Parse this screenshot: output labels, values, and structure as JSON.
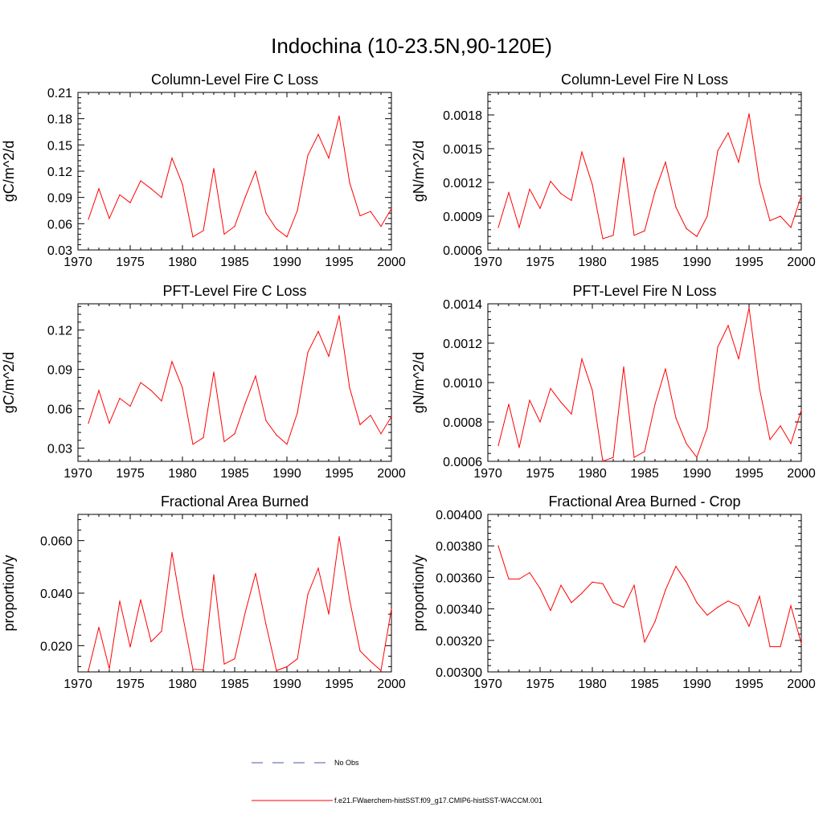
{
  "title": "Indochina (10-23.5N,90-120E)",
  "colors": {
    "model": "#ff0000",
    "obs": "#4a5aa8",
    "axis": "#000000"
  },
  "legend": {
    "obs_label": "No Obs",
    "model_label": "f.e21.FWaerchem-histSST.f09_g17.CMIP6-histSST-WACCM.001"
  },
  "chart_data": [
    {
      "type": "line",
      "title": "Column-Level Fire C Loss",
      "ylabel": "gC/m^2/d",
      "xlim": [
        1970,
        2000
      ],
      "ylim": [
        0.03,
        0.21
      ],
      "xticks": [
        "1970",
        "1975",
        "1980",
        "1985",
        "1990",
        "1995",
        "2000"
      ],
      "yticks": [
        "0.03",
        "0.06",
        "0.09",
        "0.12",
        "0.15",
        "0.18",
        "0.21"
      ],
      "x": [
        1971,
        1972,
        1973,
        1974,
        1975,
        1976,
        1977,
        1978,
        1979,
        1980,
        1981,
        1982,
        1983,
        1984,
        1985,
        1986,
        1987,
        1988,
        1989,
        1990,
        1991,
        1992,
        1993,
        1994,
        1995,
        1996,
        1997,
        1998,
        1999,
        2000
      ],
      "series": [
        {
          "values": [
            0.065,
            0.1,
            0.066,
            0.093,
            0.084,
            0.109,
            0.1,
            0.09,
            0.135,
            0.105,
            0.045,
            0.052,
            0.123,
            0.048,
            0.057,
            0.09,
            0.12,
            0.072,
            0.054,
            0.045,
            0.075,
            0.138,
            0.162,
            0.135,
            0.183,
            0.107,
            0.069,
            0.074,
            0.057,
            0.077
          ]
        }
      ]
    },
    {
      "type": "line",
      "title": "Column-Level Fire N Loss",
      "ylabel": "gN/m^2/d",
      "xlim": [
        1970,
        2000
      ],
      "ylim": [
        0.0006,
        0.002
      ],
      "xticks": [
        "1970",
        "1975",
        "1980",
        "1985",
        "1990",
        "1995",
        "2000"
      ],
      "yticks": [
        "0.0006",
        "0.0009",
        "0.0012",
        "0.0015",
        "0.0018"
      ],
      "ytick_values": [
        0.0006,
        0.0009,
        0.0012,
        0.0015,
        0.0018
      ],
      "x": [
        1971,
        1972,
        1973,
        1974,
        1975,
        1976,
        1977,
        1978,
        1979,
        1980,
        1981,
        1982,
        1983,
        1984,
        1985,
        1986,
        1987,
        1988,
        1989,
        1990,
        1991,
        1992,
        1993,
        1994,
        1995,
        1996,
        1997,
        1998,
        1999,
        2000
      ],
      "series": [
        {
          "values": [
            0.0008,
            0.00111,
            0.0008,
            0.00114,
            0.00097,
            0.00121,
            0.0011,
            0.00104,
            0.00147,
            0.00118,
            0.0007,
            0.00073,
            0.00142,
            0.00073,
            0.00077,
            0.00112,
            0.00138,
            0.00098,
            0.00079,
            0.00072,
            0.0009,
            0.00148,
            0.00164,
            0.00138,
            0.00181,
            0.0012,
            0.00086,
            0.0009,
            0.0008,
            0.00108
          ]
        }
      ]
    },
    {
      "type": "line",
      "title": "PFT-Level Fire C Loss",
      "ylabel": "gC/m^2/d",
      "xlim": [
        1970,
        2000
      ],
      "ylim": [
        0.02,
        0.14
      ],
      "xticks": [
        "1970",
        "1975",
        "1980",
        "1985",
        "1990",
        "1995",
        "2000"
      ],
      "yticks": [
        "0.03",
        "0.06",
        "0.09",
        "0.12"
      ],
      "ytick_values": [
        0.03,
        0.06,
        0.09,
        0.12
      ],
      "x": [
        1971,
        1972,
        1973,
        1974,
        1975,
        1976,
        1977,
        1978,
        1979,
        1980,
        1981,
        1982,
        1983,
        1984,
        1985,
        1986,
        1987,
        1988,
        1989,
        1990,
        1991,
        1992,
        1993,
        1994,
        1995,
        1996,
        1997,
        1998,
        1999,
        2000
      ],
      "series": [
        {
          "values": [
            0.049,
            0.074,
            0.049,
            0.068,
            0.062,
            0.08,
            0.074,
            0.066,
            0.096,
            0.076,
            0.033,
            0.038,
            0.088,
            0.035,
            0.041,
            0.064,
            0.085,
            0.051,
            0.04,
            0.033,
            0.057,
            0.103,
            0.119,
            0.1,
            0.131,
            0.076,
            0.048,
            0.055,
            0.041,
            0.054
          ]
        }
      ]
    },
    {
      "type": "line",
      "title": "PFT-Level Fire N Loss",
      "ylabel": "gN/m^2/d",
      "xlim": [
        1970,
        2000
      ],
      "ylim": [
        0.0006,
        0.0014
      ],
      "xticks": [
        "1970",
        "1975",
        "1980",
        "1985",
        "1990",
        "1995",
        "2000"
      ],
      "yticks": [
        "0.0006",
        "0.0008",
        "0.0010",
        "0.0012",
        "0.0014"
      ],
      "ytick_values": [
        0.0006,
        0.0008,
        0.001,
        0.0012,
        0.0014
      ],
      "x": [
        1971,
        1972,
        1973,
        1974,
        1975,
        1976,
        1977,
        1978,
        1979,
        1980,
        1981,
        1982,
        1983,
        1984,
        1985,
        1986,
        1987,
        1988,
        1989,
        1990,
        1991,
        1992,
        1993,
        1994,
        1995,
        1996,
        1997,
        1998,
        1999,
        2000
      ],
      "series": [
        {
          "values": [
            0.00068,
            0.00089,
            0.00067,
            0.00091,
            0.0008,
            0.00097,
            0.0009,
            0.00084,
            0.00112,
            0.00096,
            0.0006,
            0.00062,
            0.00108,
            0.00062,
            0.00065,
            0.00089,
            0.00107,
            0.00082,
            0.00069,
            0.00062,
            0.00077,
            0.00118,
            0.00129,
            0.00112,
            0.00138,
            0.00097,
            0.00071,
            0.00078,
            0.00069,
            0.00086
          ]
        }
      ]
    },
    {
      "type": "line",
      "title": "Fractional Area Burned",
      "ylabel": "proportion/y",
      "xlim": [
        1970,
        2000
      ],
      "ylim": [
        0.01,
        0.07
      ],
      "xticks": [
        "1970",
        "1975",
        "1980",
        "1985",
        "1990",
        "1995",
        "2000"
      ],
      "yticks": [
        "0.020",
        "0.040",
        "0.060"
      ],
      "ytick_values": [
        0.02,
        0.04,
        0.06
      ],
      "x": [
        1971,
        1972,
        1973,
        1974,
        1975,
        1976,
        1977,
        1978,
        1979,
        1980,
        1981,
        1982,
        1983,
        1984,
        1985,
        1986,
        1987,
        1988,
        1989,
        1990,
        1991,
        1992,
        1993,
        1994,
        1995,
        1996,
        1997,
        1998,
        1999,
        2000
      ],
      "series": [
        {
          "values": [
            0.0105,
            0.027,
            0.0112,
            0.037,
            0.0195,
            0.0375,
            0.0215,
            0.0255,
            0.0555,
            0.032,
            0.011,
            0.0108,
            0.047,
            0.013,
            0.015,
            0.0325,
            0.0475,
            0.028,
            0.0105,
            0.012,
            0.015,
            0.0395,
            0.0495,
            0.032,
            0.0615,
            0.0375,
            0.018,
            0.014,
            0.0105,
            0.034
          ]
        }
      ]
    },
    {
      "type": "line",
      "title": "Fractional Area Burned - Crop",
      "ylabel": "proportion/y",
      "xlim": [
        1970,
        2000
      ],
      "ylim": [
        0.003,
        0.004
      ],
      "xticks": [
        "1970",
        "1975",
        "1980",
        "1985",
        "1990",
        "1995",
        "2000"
      ],
      "yticks": [
        "0.00300",
        "0.00320",
        "0.00340",
        "0.00360",
        "0.00380",
        "0.00400"
      ],
      "ytick_values": [
        0.003,
        0.0032,
        0.0034,
        0.0036,
        0.0038,
        0.004
      ],
      "x": [
        1971,
        1972,
        1973,
        1974,
        1975,
        1976,
        1977,
        1978,
        1979,
        1980,
        1981,
        1982,
        1983,
        1984,
        1985,
        1986,
        1987,
        1988,
        1989,
        1990,
        1991,
        1992,
        1993,
        1994,
        1995,
        1996,
        1997,
        1998,
        1999,
        2000
      ],
      "series": [
        {
          "values": [
            0.0038,
            0.00359,
            0.00359,
            0.00363,
            0.00353,
            0.00339,
            0.00355,
            0.00344,
            0.0035,
            0.00357,
            0.00356,
            0.00344,
            0.00341,
            0.00355,
            0.00319,
            0.00332,
            0.00352,
            0.00367,
            0.00357,
            0.00344,
            0.00336,
            0.00341,
            0.00345,
            0.00342,
            0.00329,
            0.00348,
            0.00316,
            0.00316,
            0.00342,
            0.00318
          ]
        }
      ]
    }
  ]
}
